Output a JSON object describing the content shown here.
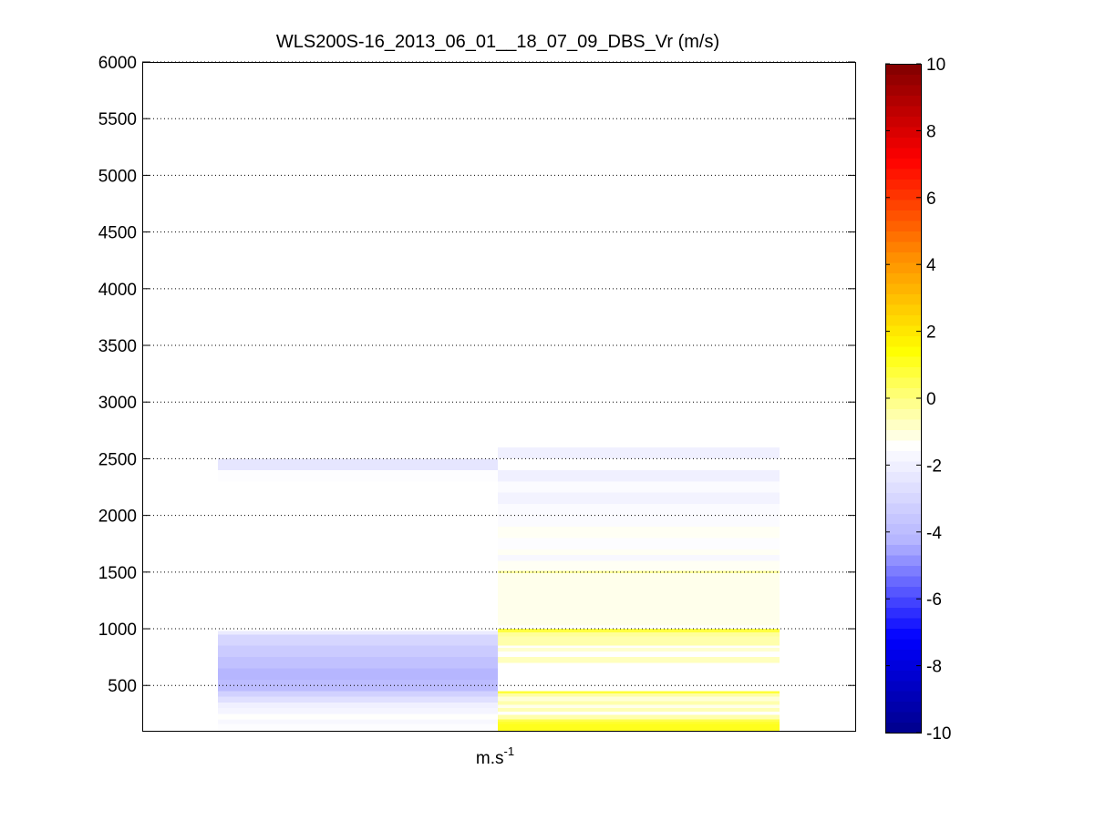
{
  "chart_data": {
    "type": "heatmap",
    "title": "WLS200S-16_2013_06_01__18_07_09_DBS_Vr (m/s)",
    "xlabel_base": "m.s",
    "xlabel_exp": "-1",
    "ylabel": "",
    "ylim": [
      100,
      6000
    ],
    "yticks": [
      500,
      1000,
      1500,
      2000,
      2500,
      3000,
      3500,
      4000,
      4500,
      5000,
      5500,
      6000
    ],
    "grid": "horizontal dotted",
    "colorbar": {
      "min": -10,
      "max": 10,
      "ticks": [
        -10,
        -8,
        -6,
        -4,
        -2,
        0,
        2,
        4,
        6,
        8,
        10
      ],
      "colors": [
        "#00008b",
        "#0000ff",
        "#b4b4ff",
        "#ffffff",
        "#ffff00",
        "#ff8c00",
        "#ff0000",
        "#800000"
      ]
    },
    "columns": [
      {
        "name": "column-1",
        "cells": [
          {
            "y0": 2400,
            "y1": 2500,
            "v": -2.4
          },
          {
            "y0": 2300,
            "y1": 2400,
            "v": -1.5
          },
          {
            "y0": 950,
            "y1": 980,
            "v": -2.2
          },
          {
            "y0": 850,
            "y1": 950,
            "v": -3.0
          },
          {
            "y0": 750,
            "y1": 850,
            "v": -3.4
          },
          {
            "y0": 650,
            "y1": 750,
            "v": -3.8
          },
          {
            "y0": 550,
            "y1": 650,
            "v": -4.2
          },
          {
            "y0": 450,
            "y1": 550,
            "v": -4.0
          },
          {
            "y0": 400,
            "y1": 450,
            "v": -3.2
          },
          {
            "y0": 350,
            "y1": 400,
            "v": -2.6
          },
          {
            "y0": 300,
            "y1": 350,
            "v": -2.0
          },
          {
            "y0": 250,
            "y1": 300,
            "v": -1.8
          },
          {
            "y0": 200,
            "y1": 250,
            "v": -1.4
          },
          {
            "y0": 160,
            "y1": 200,
            "v": -1.7
          },
          {
            "y0": 100,
            "y1": 160,
            "v": -1.5
          }
        ]
      },
      {
        "name": "column-2",
        "cells": [
          {
            "y0": 2500,
            "y1": 2600,
            "v": -2.0
          },
          {
            "y0": 2300,
            "y1": 2400,
            "v": -2.0
          },
          {
            "y0": 2200,
            "y1": 2300,
            "v": -1.6
          },
          {
            "y0": 2100,
            "y1": 2200,
            "v": -1.9
          },
          {
            "y0": 1900,
            "y1": 2100,
            "v": -1.6
          },
          {
            "y0": 1800,
            "y1": 1900,
            "v": -1.3
          },
          {
            "y0": 1700,
            "y1": 1800,
            "v": -1.5
          },
          {
            "y0": 1650,
            "y1": 1700,
            "v": -1.3
          },
          {
            "y0": 1600,
            "y1": 1650,
            "v": -1.7
          },
          {
            "y0": 1510,
            "y1": 1600,
            "v": -1.3
          },
          {
            "y0": 1490,
            "y1": 1510,
            "v": -0.3
          },
          {
            "y0": 1030,
            "y1": 1490,
            "v": -1.2
          },
          {
            "y0": 970,
            "y1": 1000,
            "v": 0.7
          },
          {
            "y0": 930,
            "y1": 970,
            "v": -0.3
          },
          {
            "y0": 850,
            "y1": 930,
            "v": -0.5
          },
          {
            "y0": 830,
            "y1": 850,
            "v": -1.4
          },
          {
            "y0": 800,
            "y1": 830,
            "v": -0.9
          },
          {
            "y0": 780,
            "y1": 800,
            "v": -1.4
          },
          {
            "y0": 700,
            "y1": 750,
            "v": -0.7
          },
          {
            "y0": 430,
            "y1": 450,
            "v": 0.8
          },
          {
            "y0": 400,
            "y1": 430,
            "v": -0.4
          },
          {
            "y0": 360,
            "y1": 400,
            "v": -1.0
          },
          {
            "y0": 330,
            "y1": 360,
            "v": -0.5
          },
          {
            "y0": 300,
            "y1": 330,
            "v": -1.2
          },
          {
            "y0": 270,
            "y1": 300,
            "v": -0.6
          },
          {
            "y0": 240,
            "y1": 270,
            "v": -1.4
          },
          {
            "y0": 200,
            "y1": 240,
            "v": -0.5
          },
          {
            "y0": 180,
            "y1": 200,
            "v": 0.6
          },
          {
            "y0": 160,
            "y1": 180,
            "v": 0.9
          },
          {
            "y0": 100,
            "y1": 160,
            "v": 1.1
          }
        ]
      }
    ]
  }
}
